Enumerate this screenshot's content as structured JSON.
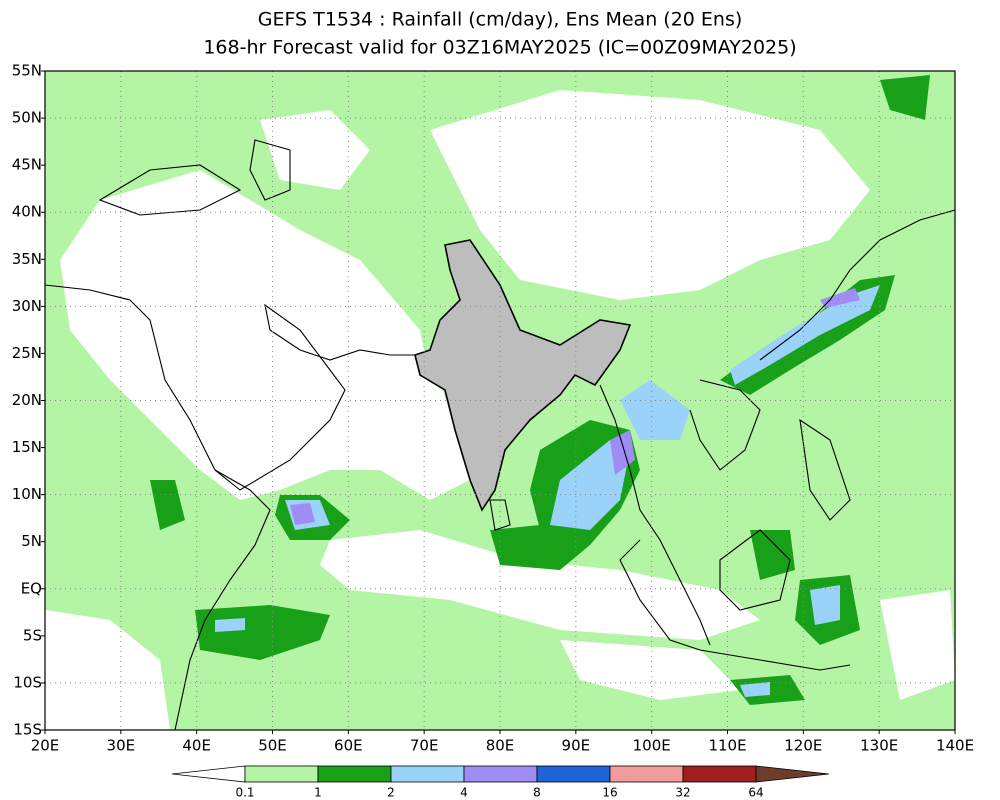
{
  "header": {
    "title": [
      "GEFS T1534 : Rainfall (cm/day), Ens Mean (20 Ens)",
      "168-hr Forecast valid for 03Z16MAY2025 (IC=00Z09MAY2025)"
    ]
  },
  "map": {
    "lat_labels": [
      "55N",
      "50N",
      "45N",
      "40N",
      "35N",
      "30N",
      "25N",
      "20N",
      "15N",
      "10N",
      "5N",
      "EQ",
      "5S",
      "10S",
      "15S"
    ],
    "lon_labels": [
      "20E",
      "30E",
      "40E",
      "50E",
      "60E",
      "70E",
      "80E",
      "90E",
      "100E",
      "110E",
      "120E",
      "130E",
      "140E"
    ]
  },
  "colorbar": {
    "labels": [
      "0.1",
      "1",
      "2",
      "4",
      "8",
      "16",
      "32",
      "64"
    ],
    "colors": [
      "#ffffff",
      "#b4f5a5",
      "#18a018",
      "#9ad2fa",
      "#a08cf5",
      "#1e64d2",
      "#f09c9c",
      "#a01e1e",
      "#6e3c28"
    ]
  }
}
